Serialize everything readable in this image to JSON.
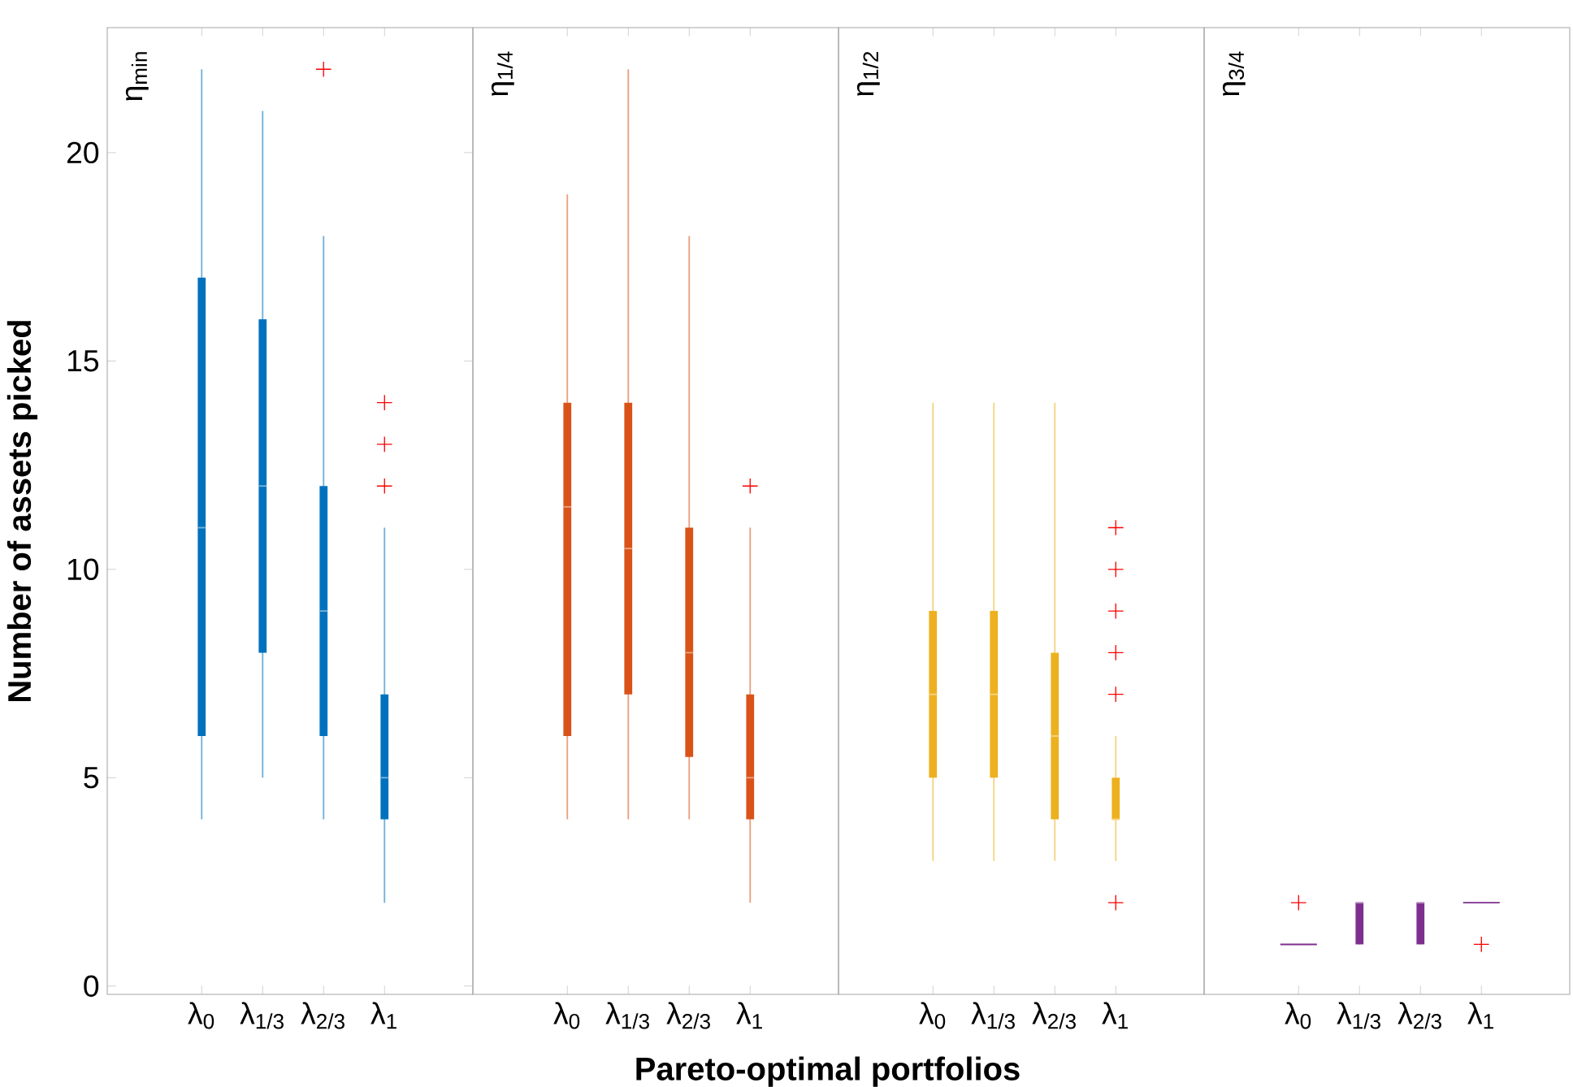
{
  "chart_data": [
    {
      "type": "box",
      "title": "η$_{min}$",
      "ylabel": "Number of assets picked",
      "categories": [
        "λ$_{0}$",
        "λ$_{1/3}$",
        "λ$_{2/3}$",
        "λ$_{1}$"
      ],
      "ylim": [
        -0.2,
        23
      ],
      "yticks": [
        0,
        5,
        10,
        15,
        20
      ],
      "series": [
        {
          "color": "#0072bd",
          "boxes": [
            {
              "low": 4,
              "q1": 6,
              "median": 11,
              "q3": 17,
              "high": 22
            },
            {
              "low": 5,
              "q1": 8,
              "median": 12,
              "q3": 16,
              "high": 21
            },
            {
              "low": 4,
              "q1": 6,
              "median": 9,
              "q3": 12,
              "high": 18,
              "outliers": [
                22
              ]
            },
            {
              "low": 2,
              "q1": 4,
              "median": 5,
              "q3": 7,
              "high": 11,
              "outliers": [
                12,
                13,
                14
              ]
            }
          ]
        }
      ]
    },
    {
      "type": "box",
      "title": "η$_{1/4}$",
      "xlabel": "Pareto-optimal portfolios",
      "categories": [
        "λ$_{0}$",
        "λ$_{1/3}$",
        "λ$_{2/3}$",
        "λ$_{1}$"
      ],
      "ylim": [
        -0.2,
        23
      ],
      "tick_labels": "x",
      "series": [
        {
          "color": "#d95319",
          "boxes": [
            {
              "low": 4,
              "q1": 6,
              "median": 11.5,
              "q3": 14,
              "high": 19
            },
            {
              "low": 4,
              "q1": 7,
              "median": 10.5,
              "q3": 14,
              "high": 22
            },
            {
              "low": 4,
              "q1": 5.5,
              "median": 8,
              "q3": 11,
              "high": 18
            },
            {
              "low": 2,
              "q1": 4,
              "median": 5,
              "q3": 7,
              "high": 11,
              "outliers": [
                12
              ]
            }
          ]
        }
      ]
    },
    {
      "type": "box",
      "title": "η$_{1/2}$",
      "categories": [
        "λ$_{0}$",
        "λ$_{1/3}$",
        "λ$_{2/3}$",
        "λ$_{1}$"
      ],
      "ylim": [
        -0.2,
        23
      ],
      "tick_labels": "x",
      "series": [
        {
          "color": "#edb120",
          "boxes": [
            {
              "low": 3,
              "q1": 5,
              "median": 7,
              "q3": 9,
              "high": 14
            },
            {
              "low": 3,
              "q1": 5,
              "median": 7,
              "q3": 9,
              "high": 14
            },
            {
              "low": 3,
              "q1": 4,
              "median": 6,
              "q3": 8,
              "high": 14
            },
            {
              "low": 3,
              "q1": 4,
              "median": 4,
              "q3": 5,
              "high": 6,
              "outliers": [
                2,
                7,
                8,
                9,
                10,
                11
              ]
            }
          ]
        }
      ]
    },
    {
      "type": "box",
      "title": "η$_{3/4}$",
      "categories": [
        "λ$_{0}$",
        "λ$_{1/3}$",
        "λ$_{2/3}$",
        "λ$_{1}$"
      ],
      "ylim": [
        -0.2,
        23
      ],
      "tick_labels": "x",
      "series": [
        {
          "color": "#7e2f8e",
          "boxes": [
            {
              "low": 1,
              "q1": 1,
              "median": 1,
              "q3": 1,
              "high": 1,
              "outliers": [
                2
              ]
            },
            {
              "low": 1,
              "q1": 1,
              "median": 2,
              "q3": 2,
              "high": 2
            },
            {
              "low": 1,
              "q1": 1,
              "median": 2,
              "q3": 2,
              "high": 2
            },
            {
              "low": 2,
              "q1": 2,
              "median": 2,
              "q3": 2,
              "high": 2,
              "outliers": [
                1
              ]
            }
          ]
        }
      ]
    }
  ]
}
